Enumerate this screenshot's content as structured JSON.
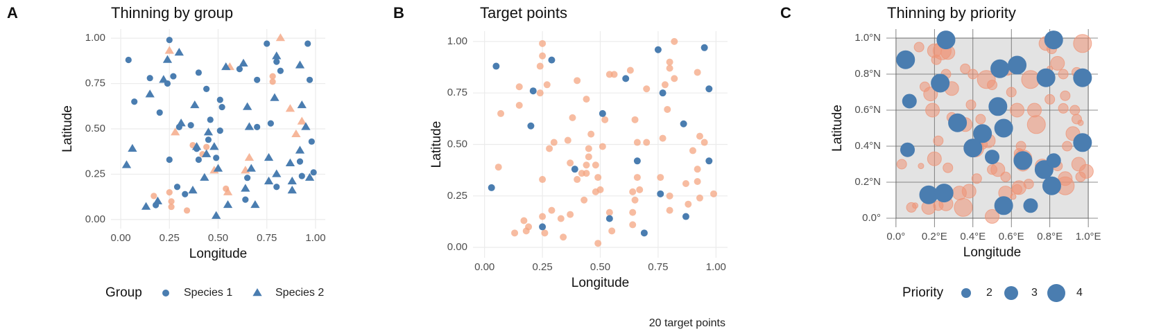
{
  "chart_data": [
    {
      "type": "scatter",
      "label": "A",
      "title": "Thinning by group",
      "x_label": "Longitude",
      "y_label": "Latitude",
      "xlim": [
        -0.05,
        1.05
      ],
      "ylim": [
        -0.05,
        1.05
      ],
      "xticks": [
        {
          "value": 0,
          "label": "0.00"
        },
        {
          "value": 0.25,
          "label": "0.25"
        },
        {
          "value": 0.5,
          "label": "0.50"
        },
        {
          "value": 0.75,
          "label": "0.75"
        },
        {
          "value": 1,
          "label": "1.00"
        }
      ],
      "yticks": [
        {
          "value": 0,
          "label": "0.00"
        },
        {
          "value": 0.25,
          "label": "0.25"
        },
        {
          "value": 0.5,
          "label": "0.50"
        },
        {
          "value": 0.75,
          "label": "0.75"
        },
        {
          "value": 1,
          "label": "1.00"
        }
      ],
      "grid": true,
      "legend": {
        "title": "Group",
        "entries": [
          {
            "name": "Species 1",
            "shape": "circle"
          },
          {
            "name": "Species 2",
            "shape": "triangle"
          }
        ],
        "color": "#4a7db0"
      },
      "series": [
        {
          "shape": "circle",
          "color": "#f4a582",
          "alpha": 0.8,
          "x": [
            0.17,
            0.25,
            0.26,
            0.26,
            0.34,
            0.54,
            0.37,
            0.44,
            0.42,
            0.78,
            0.78
          ],
          "y": [
            0.13,
            0.15,
            0.1,
            0.07,
            0.05,
            0.17,
            0.41,
            0.4,
            0.36,
            0.76,
            0.79
          ]
        },
        {
          "shape": "triangle",
          "color": "#f4a582",
          "alpha": 0.8,
          "x": [
            0.25,
            0.82,
            0.56,
            0.28,
            0.87,
            0.9,
            0.93,
            0.48,
            0.55,
            0.66,
            0.64
          ],
          "y": [
            0.93,
            1.0,
            0.84,
            0.48,
            0.61,
            0.47,
            0.54,
            0.27,
            0.15,
            0.34,
            0.27
          ]
        },
        {
          "shape": "circle",
          "color": "#4a7db0",
          "alpha": 1,
          "x": [
            0.04,
            0.25,
            0.07,
            0.15,
            0.24,
            0.27,
            0.2,
            0.4,
            0.44,
            0.61,
            0.7,
            0.8,
            0.82,
            0.96,
            0.97,
            0.75,
            0.51,
            0.52,
            0.51,
            0.3,
            0.36,
            0.46,
            0.45,
            0.39,
            0.4,
            0.25,
            0.49,
            0.65,
            0.7,
            0.77,
            0.98,
            0.92,
            0.93,
            0.99,
            0.8,
            0.64,
            0.29,
            0.33,
            0.18
          ],
          "y": [
            0.88,
            0.99,
            0.65,
            0.78,
            0.75,
            0.79,
            0.59,
            0.81,
            0.72,
            0.83,
            0.77,
            0.87,
            0.82,
            0.97,
            0.77,
            0.97,
            0.66,
            0.62,
            0.49,
            0.51,
            0.52,
            0.55,
            0.44,
            0.39,
            0.33,
            0.33,
            0.34,
            0.23,
            0.51,
            0.53,
            0.43,
            0.32,
            0.24,
            0.26,
            0.18,
            0.11,
            0.18,
            0.14,
            0.08
          ]
        },
        {
          "shape": "triangle",
          "color": "#4a7db0",
          "alpha": 1,
          "x": [
            0.24,
            0.3,
            0.15,
            0.22,
            0.54,
            0.63,
            0.8,
            0.92,
            0.79,
            0.38,
            0.31,
            0.65,
            0.66,
            0.93,
            0.95,
            0.45,
            0.39,
            0.48,
            0.44,
            0.5,
            0.67,
            0.76,
            0.8,
            0.76,
            0.87,
            0.92,
            0.88,
            0.97,
            0.88,
            0.64,
            0.43,
            0.37,
            0.55,
            0.69,
            0.49,
            0.13,
            0.19,
            0.03,
            0.06
          ],
          "y": [
            0.88,
            0.92,
            0.69,
            0.77,
            0.84,
            0.86,
            0.9,
            0.85,
            0.67,
            0.63,
            0.53,
            0.62,
            0.51,
            0.63,
            0.51,
            0.48,
            0.4,
            0.4,
            0.36,
            0.28,
            0.28,
            0.34,
            0.25,
            0.21,
            0.31,
            0.38,
            0.21,
            0.23,
            0.16,
            0.17,
            0.23,
            0.16,
            0.08,
            0.08,
            0.02,
            0.07,
            0.1,
            0.3,
            0.39
          ]
        }
      ]
    },
    {
      "type": "scatter",
      "label": "B",
      "title": "Target points",
      "x_label": "Longitude",
      "y_label": "Latitude",
      "caption": "20 target points",
      "xlim": [
        -0.05,
        1.05
      ],
      "ylim": [
        -0.05,
        1.05
      ],
      "xticks": [
        {
          "value": 0,
          "label": "0.00"
        },
        {
          "value": 0.25,
          "label": "0.25"
        },
        {
          "value": 0.5,
          "label": "0.50"
        },
        {
          "value": 0.75,
          "label": "0.75"
        },
        {
          "value": 1,
          "label": "1.00"
        }
      ],
      "yticks": [
        {
          "value": 0,
          "label": "0.00"
        },
        {
          "value": 0.25,
          "label": "0.25"
        },
        {
          "value": 0.5,
          "label": "0.50"
        },
        {
          "value": 0.75,
          "label": "0.75"
        },
        {
          "value": 1,
          "label": "1.00"
        }
      ],
      "grid": true,
      "series": [
        {
          "shape": "circle",
          "color": "#f4a582",
          "alpha": 0.75,
          "x": [
            0.17,
            0.25,
            0.26,
            0.34,
            0.54,
            0.37,
            0.44,
            0.42,
            0.78,
            0.25,
            0.82,
            0.56,
            0.28,
            0.9,
            0.93,
            0.48,
            0.66,
            0.64,
            0.25,
            0.07,
            0.15,
            0.24,
            0.27,
            0.4,
            0.44,
            0.7,
            0.8,
            0.82,
            0.52,
            0.51,
            0.3,
            0.36,
            0.46,
            0.45,
            0.4,
            0.25,
            0.49,
            0.65,
            0.7,
            0.77,
            0.92,
            0.93,
            0.99,
            0.8,
            0.64,
            0.29,
            0.33,
            0.18,
            0.24,
            0.15,
            0.54,
            0.63,
            0.8,
            0.92,
            0.79,
            0.38,
            0.65,
            0.66,
            0.95,
            0.45,
            0.48,
            0.44,
            0.5,
            0.67,
            0.76,
            0.8,
            0.87,
            0.92,
            0.88,
            0.64,
            0.43,
            0.37,
            0.55,
            0.49,
            0.13,
            0.19,
            0.06
          ],
          "y": [
            0.13,
            0.15,
            0.07,
            0.05,
            0.17,
            0.41,
            0.4,
            0.36,
            0.79,
            0.93,
            1.0,
            0.84,
            0.48,
            0.47,
            0.54,
            0.27,
            0.34,
            0.27,
            0.99,
            0.65,
            0.78,
            0.75,
            0.79,
            0.81,
            0.72,
            0.77,
            0.87,
            0.82,
            0.62,
            0.49,
            0.51,
            0.52,
            0.55,
            0.44,
            0.33,
            0.33,
            0.34,
            0.23,
            0.51,
            0.53,
            0.32,
            0.24,
            0.26,
            0.18,
            0.11,
            0.18,
            0.14,
            0.08,
            0.88,
            0.69,
            0.84,
            0.86,
            0.9,
            0.85,
            0.67,
            0.63,
            0.62,
            0.51,
            0.51,
            0.48,
            0.4,
            0.36,
            0.28,
            0.28,
            0.34,
            0.25,
            0.31,
            0.38,
            0.21,
            0.17,
            0.23,
            0.16,
            0.08,
            0.02,
            0.07,
            0.1,
            0.39
          ]
        },
        {
          "shape": "circle",
          "color": "#4a7db0",
          "alpha": 1,
          "x": [
            0.05,
            0.29,
            0.21,
            0.2,
            0.03,
            0.25,
            0.39,
            0.51,
            0.61,
            0.75,
            0.95,
            0.77,
            0.97,
            0.86,
            0.97,
            0.66,
            0.76,
            0.87,
            0.69,
            0.54
          ],
          "y": [
            0.88,
            0.91,
            0.76,
            0.59,
            0.29,
            0.1,
            0.38,
            0.65,
            0.82,
            0.96,
            0.97,
            0.75,
            0.77,
            0.6,
            0.42,
            0.42,
            0.26,
            0.15,
            0.07,
            0.14
          ]
        }
      ]
    },
    {
      "type": "bubble",
      "label": "C",
      "title": "Thinning by priority",
      "x_label": "Longitude",
      "y_label": "Latitude",
      "xlim": [
        -0.05,
        1.05
      ],
      "ylim": [
        -0.05,
        1.05
      ],
      "xticks": [
        {
          "value": 0,
          "label": "0.0°"
        },
        {
          "value": 0.2,
          "label": "0.2°E"
        },
        {
          "value": 0.4,
          "label": "0.4°E"
        },
        {
          "value": 0.6,
          "label": "0.6°E"
        },
        {
          "value": 0.8,
          "label": "0.8°E"
        },
        {
          "value": 1,
          "label": "1.0°E"
        }
      ],
      "yticks": [
        {
          "value": 0,
          "label": "0.0°"
        },
        {
          "value": 0.2,
          "label": "0.2°N"
        },
        {
          "value": 0.4,
          "label": "0.4°N"
        },
        {
          "value": 0.6,
          "label": "0.6°N"
        },
        {
          "value": 0.8,
          "label": "0.8°N"
        },
        {
          "value": 1,
          "label": "1.0°N"
        }
      ],
      "grid": true,
      "size_legend": {
        "title": "Priority",
        "values": [
          2,
          3,
          4
        ],
        "color": "#4a7db0"
      },
      "series": [
        {
          "color": "#ee9477",
          "alpha": 0.55,
          "x": [
            0.12,
            0.2,
            0.24,
            0.27,
            0.21,
            0.26,
            0.36,
            0.4,
            0.47,
            0.58,
            0.7,
            0.78,
            0.81,
            0.84,
            0.87,
            0.94,
            0.97,
            0.88,
            0.8,
            0.63,
            0.6,
            0.5,
            0.39,
            0.29,
            0.18,
            0.15,
            0.19,
            0.29,
            0.36,
            0.44,
            0.73,
            0.72,
            0.87,
            0.93,
            0.94,
            0.96,
            0.92,
            0.89,
            0.48,
            0.41,
            0.45,
            0.22,
            0.66,
            0.66,
            0.65,
            0.64,
            0.53,
            0.5,
            0.57,
            0.76,
            0.84,
            0.95,
            0.99,
            0.96,
            0.88,
            0.88,
            0.69,
            0.64,
            0.63,
            0.42,
            0.38,
            0.33,
            0.35,
            0.26,
            0.22,
            0.17,
            0.08,
            0.1,
            0.57,
            0.57,
            0.5,
            0.61,
            0.03,
            0.2,
            0.27,
            0.13,
            0.8
          ],
          "y": [
            0.95,
            0.93,
            0.93,
            0.92,
            0.88,
            0.8,
            0.83,
            0.8,
            0.77,
            0.82,
            0.77,
            0.97,
            0.94,
            0.86,
            0.8,
            0.81,
            0.97,
            0.68,
            0.66,
            0.6,
            0.7,
            0.74,
            0.63,
            0.72,
            0.69,
            0.73,
            0.6,
            0.56,
            0.52,
            0.55,
            0.52,
            0.6,
            0.61,
            0.6,
            0.55,
            0.53,
            0.47,
            0.4,
            0.43,
            0.39,
            0.41,
            0.43,
            0.33,
            0.3,
            0.4,
            0.36,
            0.27,
            0.27,
            0.23,
            0.29,
            0.29,
            0.3,
            0.26,
            0.23,
            0.22,
            0.18,
            0.19,
            0.17,
            0.16,
            0.22,
            0.15,
            0.14,
            0.06,
            0.08,
            0.07,
            0.06,
            0.06,
            0.07,
            0.14,
            0.06,
            0.01,
            0.12,
            0.3,
            0.33,
            0.28,
            0.29,
            0.83
          ],
          "sizes": [
            2,
            3,
            4,
            3,
            2,
            2,
            2,
            2,
            4,
            2,
            4,
            3,
            2,
            3,
            2,
            2,
            4,
            2,
            2,
            3,
            2,
            2,
            2,
            3,
            3,
            2,
            3,
            2,
            3,
            2,
            4,
            3,
            2,
            2,
            2,
            1,
            3,
            2,
            3,
            4,
            2,
            2,
            4,
            3,
            2,
            2,
            3,
            2,
            2,
            3,
            2,
            3,
            3,
            2,
            3,
            4,
            2,
            3,
            2,
            2,
            3,
            3,
            4,
            3,
            2,
            3,
            2,
            1,
            3,
            2,
            3,
            1,
            2,
            3,
            2,
            1,
            1
          ]
        },
        {
          "color": "#4a7db0",
          "alpha": 1,
          "x": [
            0.26,
            0.82,
            0.05,
            0.23,
            0.54,
            0.63,
            0.78,
            0.97,
            0.53,
            0.07,
            0.32,
            0.56,
            0.45,
            0.4,
            0.97,
            0.06,
            0.5,
            0.66,
            0.77,
            0.82,
            0.17,
            0.25,
            0.81,
            0.7,
            0.56
          ],
          "y": [
            0.99,
            0.99,
            0.88,
            0.75,
            0.83,
            0.85,
            0.78,
            0.78,
            0.62,
            0.65,
            0.53,
            0.5,
            0.47,
            0.39,
            0.42,
            0.38,
            0.34,
            0.32,
            0.27,
            0.32,
            0.13,
            0.14,
            0.18,
            0.07,
            0.07
          ],
          "sizes": [
            4,
            4,
            4,
            4,
            4,
            4,
            4,
            4,
            4,
            3,
            4,
            4,
            4,
            4,
            4,
            3,
            3,
            4,
            4,
            3,
            4,
            4,
            4,
            3,
            4
          ]
        }
      ]
    }
  ]
}
